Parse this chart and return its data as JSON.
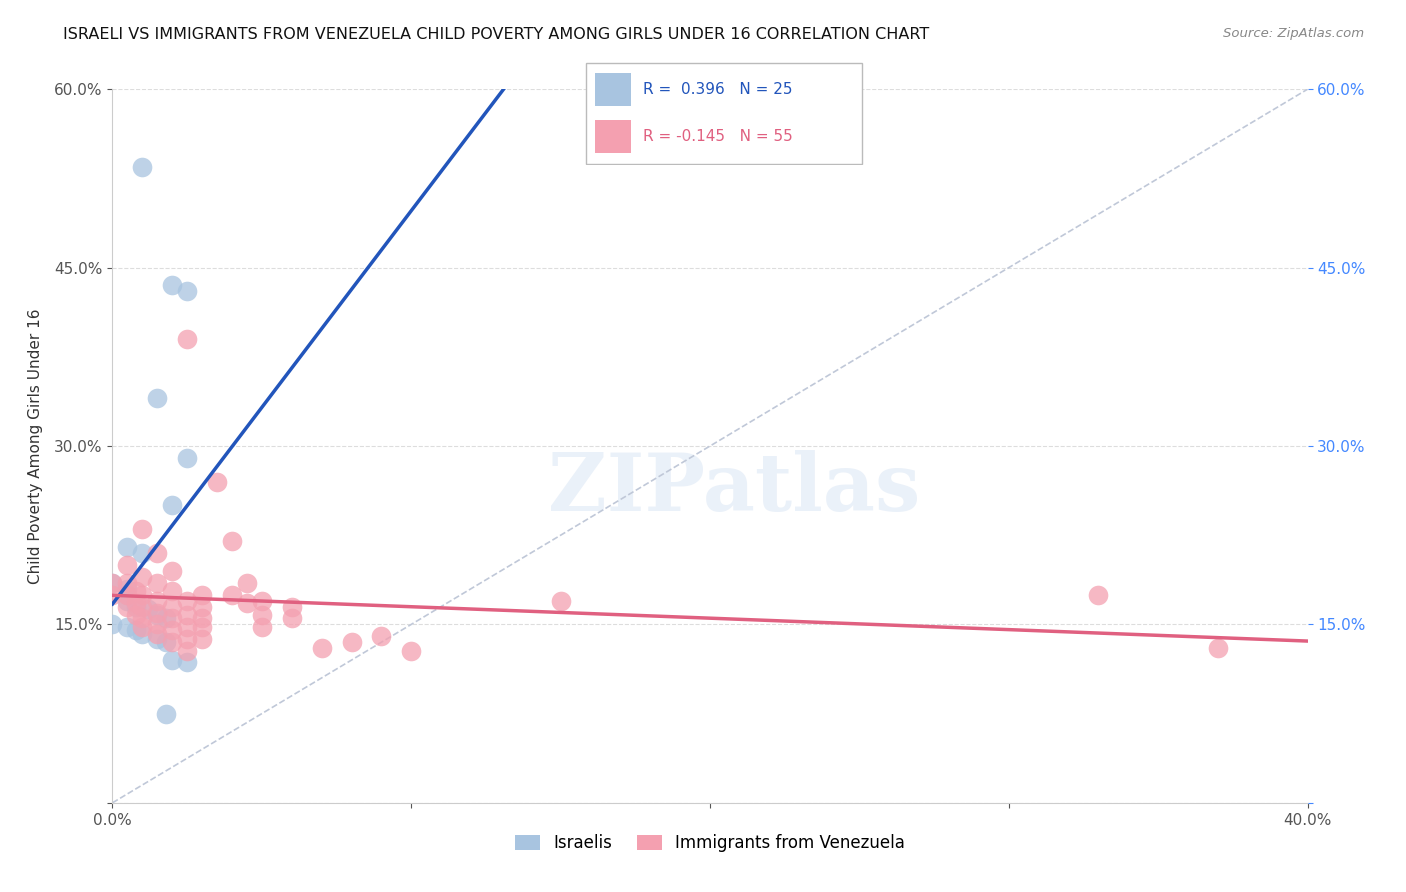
{
  "title": "ISRAELI VS IMMIGRANTS FROM VENEZUELA CHILD POVERTY AMONG GIRLS UNDER 16 CORRELATION CHART",
  "source": "Source: ZipAtlas.com",
  "ylabel": "Child Poverty Among Girls Under 16",
  "xlim": [
    0.0,
    0.4
  ],
  "ylim": [
    0.0,
    0.6
  ],
  "xticks": [
    0.0,
    0.1,
    0.2,
    0.3,
    0.4
  ],
  "yticks": [
    0.0,
    0.15,
    0.3,
    0.45,
    0.6
  ],
  "ytick_labels": [
    "",
    "15.0%",
    "30.0%",
    "45.0%",
    "60.0%"
  ],
  "xtick_labels": [
    "0.0%",
    "",
    "",
    "",
    "40.0%"
  ],
  "right_ytick_labels": [
    "60.0%",
    "45.0%",
    "30.0%",
    "15.0%",
    ""
  ],
  "israeli_color": "#a8c4e0",
  "venezuela_color": "#f4a0b0",
  "israeli_R": 0.396,
  "israeli_N": 25,
  "venezuela_R": -0.145,
  "venezuela_N": 55,
  "israeli_line_color": "#2255bb",
  "venezuela_line_color": "#e06080",
  "diagonal_color": "#c0c8d8",
  "watermark": "ZIPatlas",
  "israeli_points": [
    [
      0.01,
      0.535
    ],
    [
      0.02,
      0.435
    ],
    [
      0.025,
      0.43
    ],
    [
      0.015,
      0.34
    ],
    [
      0.025,
      0.29
    ],
    [
      0.02,
      0.25
    ],
    [
      0.005,
      0.215
    ],
    [
      0.01,
      0.21
    ],
    [
      0.0,
      0.185
    ],
    [
      0.005,
      0.18
    ],
    [
      0.005,
      0.175
    ],
    [
      0.005,
      0.17
    ],
    [
      0.008,
      0.165
    ],
    [
      0.012,
      0.163
    ],
    [
      0.015,
      0.158
    ],
    [
      0.018,
      0.155
    ],
    [
      0.0,
      0.15
    ],
    [
      0.005,
      0.148
    ],
    [
      0.008,
      0.145
    ],
    [
      0.01,
      0.142
    ],
    [
      0.015,
      0.138
    ],
    [
      0.018,
      0.135
    ],
    [
      0.02,
      0.12
    ],
    [
      0.025,
      0.118
    ],
    [
      0.018,
      0.075
    ]
  ],
  "venezuela_points": [
    [
      0.0,
      0.185
    ],
    [
      0.0,
      0.175
    ],
    [
      0.005,
      0.2
    ],
    [
      0.005,
      0.185
    ],
    [
      0.005,
      0.175
    ],
    [
      0.005,
      0.165
    ],
    [
      0.008,
      0.178
    ],
    [
      0.008,
      0.168
    ],
    [
      0.008,
      0.158
    ],
    [
      0.01,
      0.23
    ],
    [
      0.01,
      0.19
    ],
    [
      0.01,
      0.175
    ],
    [
      0.01,
      0.165
    ],
    [
      0.01,
      0.155
    ],
    [
      0.01,
      0.148
    ],
    [
      0.015,
      0.21
    ],
    [
      0.015,
      0.185
    ],
    [
      0.015,
      0.17
    ],
    [
      0.015,
      0.16
    ],
    [
      0.015,
      0.15
    ],
    [
      0.015,
      0.142
    ],
    [
      0.02,
      0.195
    ],
    [
      0.02,
      0.178
    ],
    [
      0.02,
      0.165
    ],
    [
      0.02,
      0.155
    ],
    [
      0.02,
      0.145
    ],
    [
      0.02,
      0.135
    ],
    [
      0.025,
      0.39
    ],
    [
      0.025,
      0.17
    ],
    [
      0.025,
      0.158
    ],
    [
      0.025,
      0.148
    ],
    [
      0.025,
      0.138
    ],
    [
      0.025,
      0.128
    ],
    [
      0.03,
      0.175
    ],
    [
      0.03,
      0.165
    ],
    [
      0.03,
      0.155
    ],
    [
      0.03,
      0.148
    ],
    [
      0.03,
      0.138
    ],
    [
      0.035,
      0.27
    ],
    [
      0.04,
      0.22
    ],
    [
      0.04,
      0.175
    ],
    [
      0.045,
      0.185
    ],
    [
      0.045,
      0.168
    ],
    [
      0.05,
      0.17
    ],
    [
      0.05,
      0.158
    ],
    [
      0.05,
      0.148
    ],
    [
      0.06,
      0.165
    ],
    [
      0.06,
      0.155
    ],
    [
      0.07,
      0.13
    ],
    [
      0.08,
      0.135
    ],
    [
      0.09,
      0.14
    ],
    [
      0.1,
      0.128
    ],
    [
      0.15,
      0.17
    ],
    [
      0.33,
      0.175
    ],
    [
      0.37,
      0.13
    ]
  ]
}
